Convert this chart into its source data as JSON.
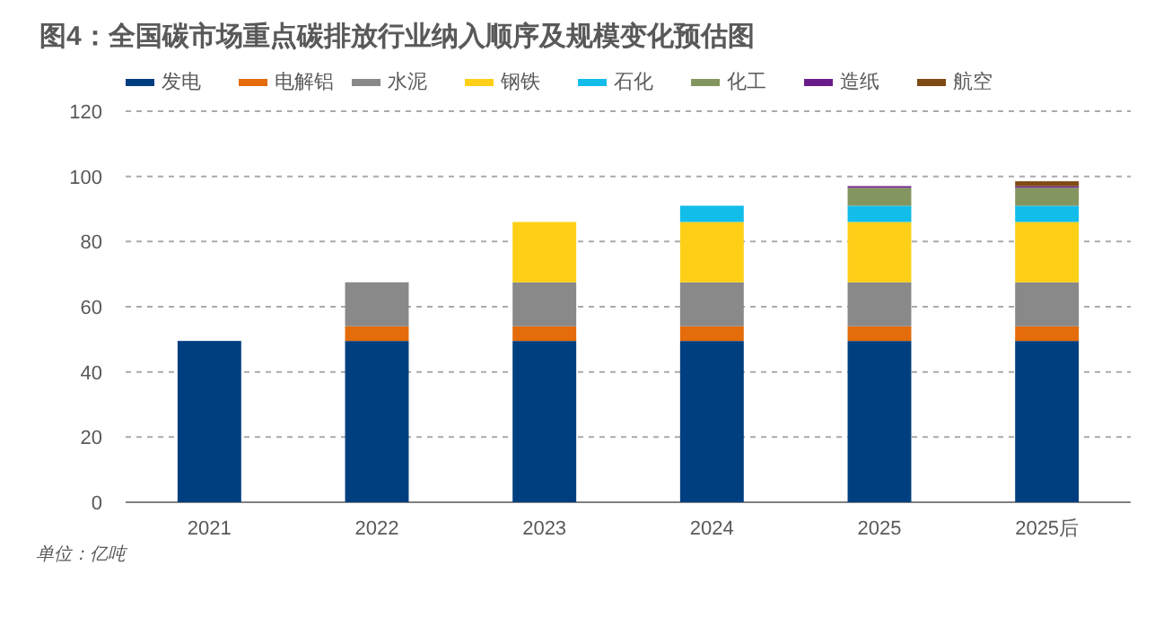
{
  "chart_data": {
    "type": "bar",
    "title": "图4：全国碳市场重点碳排放行业纳入顺序及规模变化预估图",
    "stacked": true,
    "categories": [
      "2021",
      "2022",
      "2023",
      "2024",
      "2025",
      "2025后"
    ],
    "series": [
      {
        "name": "发电",
        "color": "#003f7f",
        "values": [
          49.5,
          49.5,
          49.5,
          49.5,
          49.5,
          49.5
        ]
      },
      {
        "name": "电解铝",
        "color": "#e46c0a",
        "values": [
          null,
          4.5,
          4.5,
          4.5,
          4.5,
          4.5
        ]
      },
      {
        "name": "水泥",
        "color": "#898989",
        "values": [
          null,
          13.5,
          13.5,
          13.5,
          13.5,
          13.5
        ]
      },
      {
        "name": "钢铁",
        "color": "#fdd017",
        "values": [
          null,
          null,
          18.5,
          18.5,
          18.5,
          18.5
        ]
      },
      {
        "name": "石化",
        "color": "#13bdea",
        "values": [
          null,
          null,
          null,
          5,
          5,
          5
        ]
      },
      {
        "name": "化工",
        "color": "#84965f",
        "values": [
          null,
          null,
          null,
          null,
          5.5,
          5.5
        ]
      },
      {
        "name": "造纸",
        "color": "#6a1d8a",
        "values": [
          null,
          null,
          null,
          null,
          0.5,
          0.5
        ]
      },
      {
        "name": "航空",
        "color": "#7f4a14",
        "values": [
          null,
          null,
          null,
          null,
          null,
          1.5
        ]
      }
    ],
    "ylim": [
      0,
      120
    ],
    "yticks": [
      0,
      20,
      40,
      60,
      80,
      100,
      120
    ],
    "grid": "y",
    "legend": "top",
    "annotations": [
      "单位：亿吨"
    ]
  }
}
